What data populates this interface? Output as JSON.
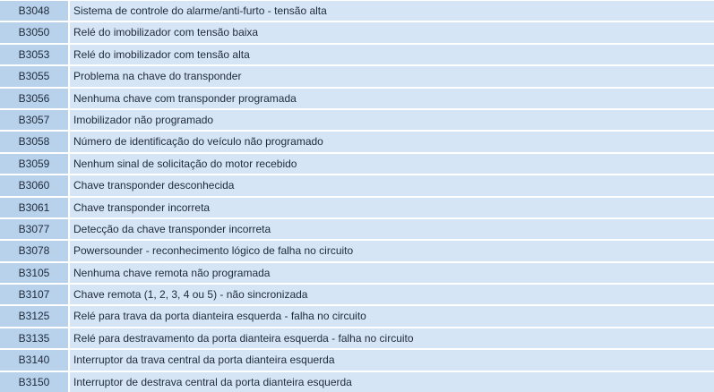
{
  "colors": {
    "code_cell": "#b8d2ec",
    "description_cell": "#d5e5f5",
    "text": "#1e2a3a"
  },
  "rows": [
    {
      "code": "B3048",
      "description": "Sistema de controle do alarme/anti-furto - tensão alta"
    },
    {
      "code": "B3050",
      "description": "Relé do imobilizador com tensão baixa"
    },
    {
      "code": "B3053",
      "description": "Relé do imobilizador com tensão alta"
    },
    {
      "code": "B3055",
      "description": "Problema na chave do transponder"
    },
    {
      "code": "B3056",
      "description": "Nenhuma chave com transponder programada"
    },
    {
      "code": "B3057",
      "description": "Imobilizador não programado"
    },
    {
      "code": "B3058",
      "description": "Número de identificação do veículo não programado"
    },
    {
      "code": "B3059",
      "description": "Nenhum sinal de solicitação do motor recebido"
    },
    {
      "code": "B3060",
      "description": "Chave transponder desconhecida"
    },
    {
      "code": "B3061",
      "description": "Chave transponder incorreta"
    },
    {
      "code": "B3077",
      "description": "Detecção da chave transponder incorreta"
    },
    {
      "code": "B3078",
      "description": "Powersounder - reconhecimento lógico de falha no circuito"
    },
    {
      "code": "B3105",
      "description": "Nenhuma chave remota não programada"
    },
    {
      "code": "B3107",
      "description": "Chave remota (1, 2, 3, 4 ou 5) - não sincronizada"
    },
    {
      "code": "B3125",
      "description": "Relé para trava da porta dianteira esquerda - falha no circuito"
    },
    {
      "code": "B3135",
      "description": "Relé para destravamento da porta dianteira esquerda - falha no circuito"
    },
    {
      "code": "B3140",
      "description": "Interruptor da trava central da porta dianteira esquerda"
    },
    {
      "code": "B3150",
      "description": "Interruptor de destrava central da porta dianteira esquerda"
    }
  ]
}
